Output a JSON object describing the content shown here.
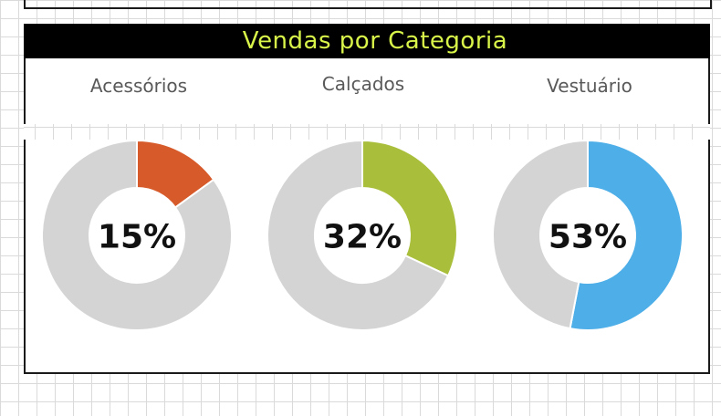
{
  "chart_data": {
    "type": "pie",
    "title": "Vendas por Categoria",
    "title_color": "#d9f54a",
    "title_background": "#000000",
    "remainder_color": "#d4d4d4",
    "charts": [
      {
        "category": "Acessórios",
        "value": 15,
        "value_label": "15%",
        "color": "#d65a2a"
      },
      {
        "category": "Calçados",
        "value": 32,
        "value_label": "32%",
        "color": "#a9bf3c"
      },
      {
        "category": "Vestuário",
        "value": 53,
        "value_label": "53%",
        "color": "#4daee8"
      }
    ]
  }
}
